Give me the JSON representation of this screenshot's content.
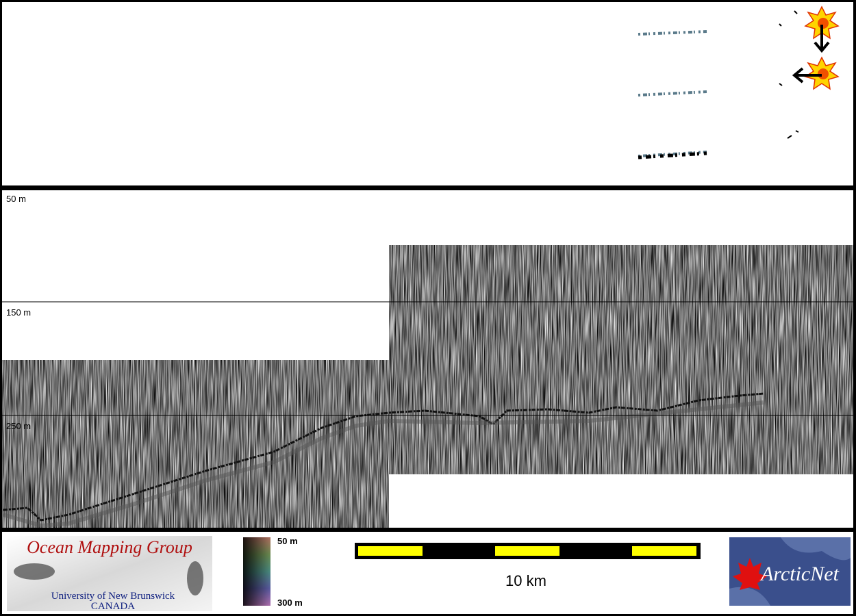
{
  "depth_labels": [
    "50 m",
    "150 m",
    "250 m"
  ],
  "logo": {
    "title": "Ocean Mapping Group",
    "line1": "University of New Brunswick",
    "line2": "CANADA"
  },
  "colorbar": {
    "top": "50 m",
    "bottom": "300 m"
  },
  "scale": {
    "label": "10 km"
  },
  "partner_logo": {
    "text": "ArcticNet"
  }
}
